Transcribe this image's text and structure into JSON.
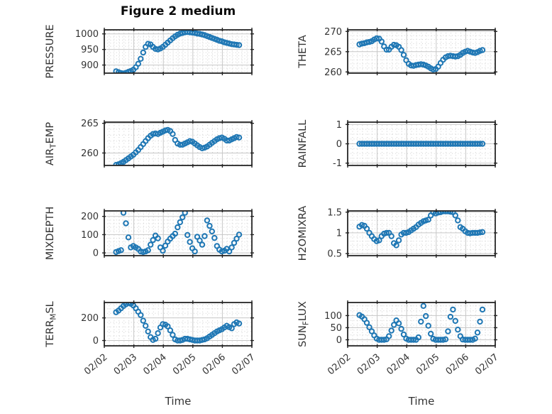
{
  "figure": {
    "title": "Figure 2 medium",
    "xlabel": "Time",
    "background_color": "#ffffff",
    "marker_color": "#1f77b4",
    "axis_box_color": "#262626",
    "major_grid_color": "#c7c7c7",
    "minor_grid_color": "#d0d0d0",
    "text_color": "#333333",
    "x_axis": {
      "tick_labels": [
        "02/02",
        "02/03",
        "02/04",
        "02/05",
        "02/06",
        "02/07"
      ],
      "lim_days": [
        0,
        5
      ],
      "tick_rotation_deg": -40
    }
  },
  "chart_data": [
    {
      "id": "pressure",
      "type": "scatter",
      "row": 0,
      "col": 0,
      "ylabel_parts": [
        [
          "PRESSURE",
          false
        ]
      ],
      "yticks": [
        900,
        950,
        1000
      ],
      "ytick_labels": [
        "900",
        "950",
        "1000"
      ],
      "ylim": [
        874,
        1013
      ],
      "y_minor_step": 10,
      "x_start_day": 0.4,
      "x_step_day": 0.0833333,
      "values": [
        880,
        877,
        874,
        873,
        875,
        878,
        881,
        885,
        893,
        904,
        920,
        940,
        958,
        968,
        966,
        958,
        952,
        950,
        953,
        958,
        965,
        972,
        979,
        986,
        992,
        997,
        1001,
        1003,
        1005,
        1006,
        1005,
        1004,
        1003,
        1001,
        1000,
        998,
        996,
        993,
        990,
        987,
        984,
        981,
        978,
        976,
        973,
        971,
        969,
        967,
        966,
        965,
        964
      ]
    },
    {
      "id": "theta",
      "type": "scatter",
      "row": 0,
      "col": 1,
      "ylabel_parts": [
        [
          "THETA",
          false
        ]
      ],
      "yticks": [
        260,
        265,
        270
      ],
      "ytick_labels": [
        "260",
        "265",
        "270"
      ],
      "ylim": [
        259.7,
        270.4
      ],
      "y_minor_step": 1,
      "x_start_day": 0.4,
      "x_step_day": 0.0833333,
      "values": [
        266.8,
        267.0,
        267.1,
        267.3,
        267.4,
        267.6,
        268.0,
        268.3,
        268.2,
        267.5,
        266.3,
        265.5,
        265.5,
        266.2,
        266.7,
        266.6,
        266.2,
        265.4,
        264.2,
        262.9,
        262.0,
        261.6,
        261.5,
        261.7,
        261.8,
        261.9,
        261.8,
        261.6,
        261.3,
        260.9,
        260.6,
        260.7,
        261.3,
        262.2,
        263.0,
        263.6,
        263.9,
        264.0,
        263.9,
        263.8,
        263.9,
        264.2,
        264.7,
        265.0,
        265.2,
        265.0,
        264.8,
        264.7,
        264.9,
        265.2,
        265.4
      ]
    },
    {
      "id": "air_temp",
      "type": "scatter",
      "row": 1,
      "col": 0,
      "ylabel_parts": [
        [
          "AIR",
          false
        ],
        [
          "T",
          true
        ],
        [
          "EMP",
          false
        ]
      ],
      "yticks": [
        260,
        265
      ],
      "ytick_labels": [
        "260",
        "265"
      ],
      "ylim": [
        257.9,
        265.2
      ],
      "y_minor_step": 1,
      "x_start_day": 0.4,
      "x_step_day": 0.0833333,
      "values": [
        258.0,
        258.1,
        258.3,
        258.5,
        258.8,
        259.1,
        259.4,
        259.7,
        260.1,
        260.5,
        261.0,
        261.5,
        262.0,
        262.5,
        262.9,
        263.2,
        263.3,
        263.2,
        263.4,
        263.6,
        263.8,
        263.9,
        263.7,
        263.2,
        262.2,
        261.6,
        261.4,
        261.4,
        261.6,
        261.8,
        262.0,
        261.9,
        261.6,
        261.3,
        261.0,
        260.8,
        260.9,
        261.1,
        261.4,
        261.7,
        262.0,
        262.3,
        262.5,
        262.6,
        262.4,
        262.1,
        262.1,
        262.3,
        262.5,
        262.7,
        262.6
      ]
    },
    {
      "id": "rainfall",
      "type": "scatter",
      "row": 1,
      "col": 1,
      "ylabel_parts": [
        [
          "RAINFALL",
          false
        ]
      ],
      "yticks": [
        -1,
        0,
        1
      ],
      "ytick_labels": [
        "-1",
        "0",
        "1"
      ],
      "ylim": [
        -1.12,
        1.12
      ],
      "y_minor_step": 0.25,
      "x_start_day": 0.4,
      "x_step_day": 0.0833333,
      "values": [
        0,
        0,
        0,
        0,
        0,
        0,
        0,
        0,
        0,
        0,
        0,
        0,
        0,
        0,
        0,
        0,
        0,
        0,
        0,
        0,
        0,
        0,
        0,
        0,
        0,
        0,
        0,
        0,
        0,
        0,
        0,
        0,
        0,
        0,
        0,
        0,
        0,
        0,
        0,
        0,
        0,
        0,
        0,
        0,
        0,
        0,
        0,
        0,
        0,
        0,
        0
      ]
    },
    {
      "id": "mixdepth",
      "type": "scatter",
      "row": 2,
      "col": 0,
      "ylabel_parts": [
        [
          "MIXDEPTH",
          false
        ]
      ],
      "yticks": [
        0,
        100,
        200
      ],
      "ytick_labels": [
        "0",
        "100",
        "200"
      ],
      "ylim": [
        -15,
        230
      ],
      "y_minor_step": 20,
      "x_start_day": 0.4,
      "x_step_day": 0.0833333,
      "values": [
        5,
        10,
        15,
        220,
        162,
        85,
        30,
        38,
        30,
        22,
        8,
        5,
        8,
        15,
        45,
        70,
        95,
        80,
        30,
        12,
        40,
        62,
        78,
        92,
        105,
        140,
        168,
        195,
        220,
        98,
        60,
        25,
        8,
        88,
        68,
        45,
        92,
        178,
        148,
        118,
        82,
        38,
        18,
        8,
        12,
        22,
        8,
        30,
        55,
        78,
        100
      ]
    },
    {
      "id": "h2omixra",
      "type": "scatter",
      "row": 2,
      "col": 1,
      "ylabel_parts": [
        [
          "H2OMIXRA",
          false
        ]
      ],
      "yticks": [
        0.5,
        1,
        1.5
      ],
      "ytick_labels": [
        "0.5",
        "1",
        "1.5"
      ],
      "ylim": [
        0.45,
        1.53
      ],
      "y_minor_step": 0.1,
      "x_start_day": 0.4,
      "x_step_day": 0.0833333,
      "values": [
        1.15,
        1.19,
        1.17,
        1.1,
        1.0,
        0.92,
        0.85,
        0.8,
        0.82,
        0.92,
        0.98,
        1.0,
        1.0,
        0.92,
        0.75,
        0.7,
        0.82,
        0.96,
        1.0,
        1.0,
        1.02,
        1.06,
        1.1,
        1.14,
        1.2,
        1.24,
        1.28,
        1.3,
        1.32,
        1.42,
        1.5,
        1.47,
        1.49,
        1.5,
        1.52,
        1.52,
        1.52,
        1.51,
        1.5,
        1.42,
        1.3,
        1.14,
        1.1,
        1.04,
        1.0,
        0.99,
        1.0,
        1.0,
        1.0,
        1.01,
        1.02
      ]
    },
    {
      "id": "terr_msl",
      "type": "scatter",
      "row": 3,
      "col": 0,
      "ylabel_parts": [
        [
          "TERR",
          false
        ],
        [
          "M",
          true
        ],
        [
          "SL",
          false
        ]
      ],
      "yticks": [
        0,
        200
      ],
      "ytick_labels": [
        "0",
        "200"
      ],
      "ylim": [
        -47,
        336
      ],
      "y_minor_step": 40,
      "x_start_day": 0.4,
      "x_step_day": 0.0833333,
      "values": [
        250,
        265,
        285,
        305,
        320,
        333,
        325,
        310,
        285,
        255,
        225,
        175,
        130,
        80,
        30,
        5,
        15,
        65,
        115,
        145,
        140,
        125,
        90,
        50,
        10,
        0,
        0,
        5,
        15,
        15,
        10,
        5,
        0,
        0,
        0,
        5,
        10,
        20,
        35,
        50,
        65,
        80,
        90,
        100,
        115,
        130,
        118,
        108,
        145,
        160,
        150
      ]
    },
    {
      "id": "sun_flux",
      "type": "scatter",
      "row": 3,
      "col": 1,
      "ylabel_parts": [
        [
          "SUN",
          false
        ],
        [
          "F",
          true
        ],
        [
          "LUX",
          false
        ]
      ],
      "yticks": [
        0,
        50,
        100
      ],
      "ytick_labels": [
        "0",
        "50",
        "100"
      ],
      "ylim": [
        -25,
        154
      ],
      "y_minor_step": 20,
      "x_start_day": 0.4,
      "x_step_day": 0.0833333,
      "values": [
        102,
        96,
        85,
        70,
        52,
        35,
        18,
        5,
        0,
        0,
        0,
        2,
        15,
        38,
        62,
        80,
        68,
        45,
        22,
        5,
        0,
        0,
        0,
        0,
        10,
        75,
        140,
        98,
        58,
        25,
        4,
        0,
        0,
        0,
        0,
        2,
        35,
        95,
        125,
        78,
        42,
        15,
        1,
        0,
        0,
        0,
        0,
        5,
        30,
        75,
        125
      ]
    }
  ]
}
